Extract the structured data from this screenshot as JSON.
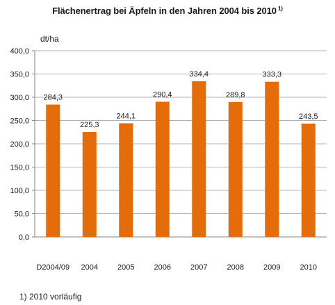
{
  "chart_data": {
    "type": "bar",
    "title": "Flächenertrag bei Äpfeln in den Jahren 2004 bis 2010",
    "title_footnote_marker": "1)",
    "ylabel": "dt/ha",
    "xlabel": "",
    "categories": [
      "D2004/09",
      "2004",
      "2005",
      "2006",
      "2007",
      "2008",
      "2009",
      "2010"
    ],
    "values": [
      284.3,
      225.3,
      244.1,
      290.4,
      334.4,
      289.8,
      333.3,
      243.5
    ],
    "data_labels": [
      "284,3",
      "225,3",
      "244,1",
      "290,4",
      "334,4",
      "289,8",
      "333,3",
      "243,5"
    ],
    "ylim": [
      0,
      400
    ],
    "yticks": [
      0,
      50,
      100,
      150,
      200,
      250,
      300,
      350,
      400
    ],
    "ytick_labels": [
      "0,0",
      "50,0",
      "100,0",
      "150,0",
      "200,0",
      "250,0",
      "300,0",
      "350,0",
      "400,0"
    ],
    "grid": true,
    "legend": "none",
    "bar_color": "#E46C0A",
    "grid_color": "#B0B0B0"
  },
  "footnote": "1) 2010 vorläufig"
}
